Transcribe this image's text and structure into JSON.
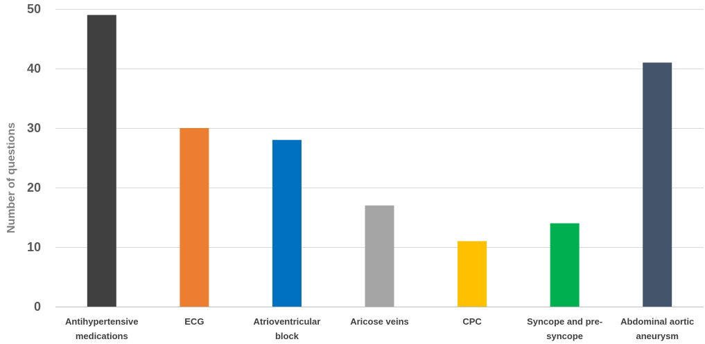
{
  "chart_data": {
    "type": "bar",
    "title": "",
    "xlabel": "",
    "ylabel": "Number of questions",
    "ylim": [
      0,
      50
    ],
    "yticks": [
      0,
      10,
      20,
      30,
      40,
      50
    ],
    "grid": true,
    "legend": "none",
    "categories": [
      [
        "Antihypertensive",
        "medications"
      ],
      [
        "ECG"
      ],
      [
        "Atrioventricular",
        "block"
      ],
      [
        "Aricose veins"
      ],
      [
        "CPC"
      ],
      [
        "Syncope and pre-",
        "syncope"
      ],
      [
        "Abdominal aortic",
        "aneurysm"
      ]
    ],
    "values": [
      49,
      30,
      28,
      17,
      11,
      14,
      41
    ],
    "colors": [
      "#404040",
      "#ed7d31",
      "#0070c0",
      "#a5a5a5",
      "#ffc000",
      "#00b050",
      "#44546a"
    ]
  }
}
